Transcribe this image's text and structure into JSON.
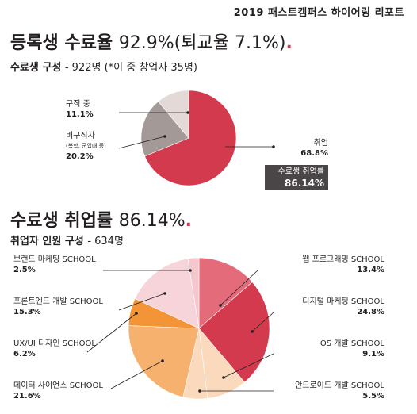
{
  "report_title": "2019 패스트캠퍼스 하이어링 리포트",
  "section1": {
    "title_label": "등록생 수료율",
    "title_value": "92.9%(퇴교율 7.1%)",
    "subtitle_label": "수료생 구성",
    "subtitle_value": "- 922명 (*이 중 창업자 35명)",
    "badge_label": "수료생 취업률",
    "badge_value": "86.14%"
  },
  "section2": {
    "title_label": "수료생 취업률",
    "title_value": "86.14%",
    "subtitle_label": "취업자 인원 구성",
    "subtitle_value": "- 634명"
  },
  "colors": {
    "red": "#d43a4e",
    "gray": "#a39a98",
    "light_gray": "#e3d9d6",
    "pink_red": "#e36b7a",
    "peach": "#fbd9bd",
    "light_orange": "#f7b16e",
    "orange": "#f39436",
    "light_pink": "#f6d4d9",
    "dark_gray": "#6d6567",
    "light_pink2": "#f4c7ce"
  },
  "chart_data": [
    {
      "type": "pie",
      "slices": [
        {
          "label": "취업",
          "value": 68.8,
          "value_label": "68.8%",
          "color": "#d43a4e"
        },
        {
          "label": "비구직자",
          "note": "(복학, 군입대 등)",
          "value": 20.2,
          "value_label": "20.2%",
          "color": "#a39a98"
        },
        {
          "label": "구직 중",
          "value": 11.1,
          "value_label": "11.1%",
          "color": "#e3d9d6"
        }
      ]
    },
    {
      "type": "pie",
      "slices": [
        {
          "label": "웹 프로그래밍 SCHOOL",
          "value": 13.4,
          "value_label": "13.4%",
          "color": "#e36b7a"
        },
        {
          "label": "디지털 마케팅 SCHOOL",
          "value": 24.8,
          "value_label": "24.8%",
          "color": "#d43a4e"
        },
        {
          "label": "iOS 개발 SCHOOL",
          "value": 9.1,
          "value_label": "9.1%",
          "color": "#fbd9bd"
        },
        {
          "label": "안드로이드 개발 SCHOOL",
          "value": 5.5,
          "value_label": "5.5%",
          "color": "#fbd9bd"
        },
        {
          "label": "데이터 사이언스 SCHOOL",
          "value": 21.6,
          "value_label": "21.6%",
          "color": "#f7b16e"
        },
        {
          "label": "UX/UI 디자인 SCHOOL",
          "value": 6.2,
          "value_label": "6.2%",
          "color": "#f39436"
        },
        {
          "label": "프론트엔드 개발 SCHOOL",
          "value": 15.3,
          "value_label": "15.3%",
          "color": "#f6d4d9"
        },
        {
          "label": "브랜드 마케팅 SCHOOL",
          "value": 2.5,
          "value_label": "2.5%",
          "color": "#f4c7ce"
        }
      ]
    }
  ]
}
